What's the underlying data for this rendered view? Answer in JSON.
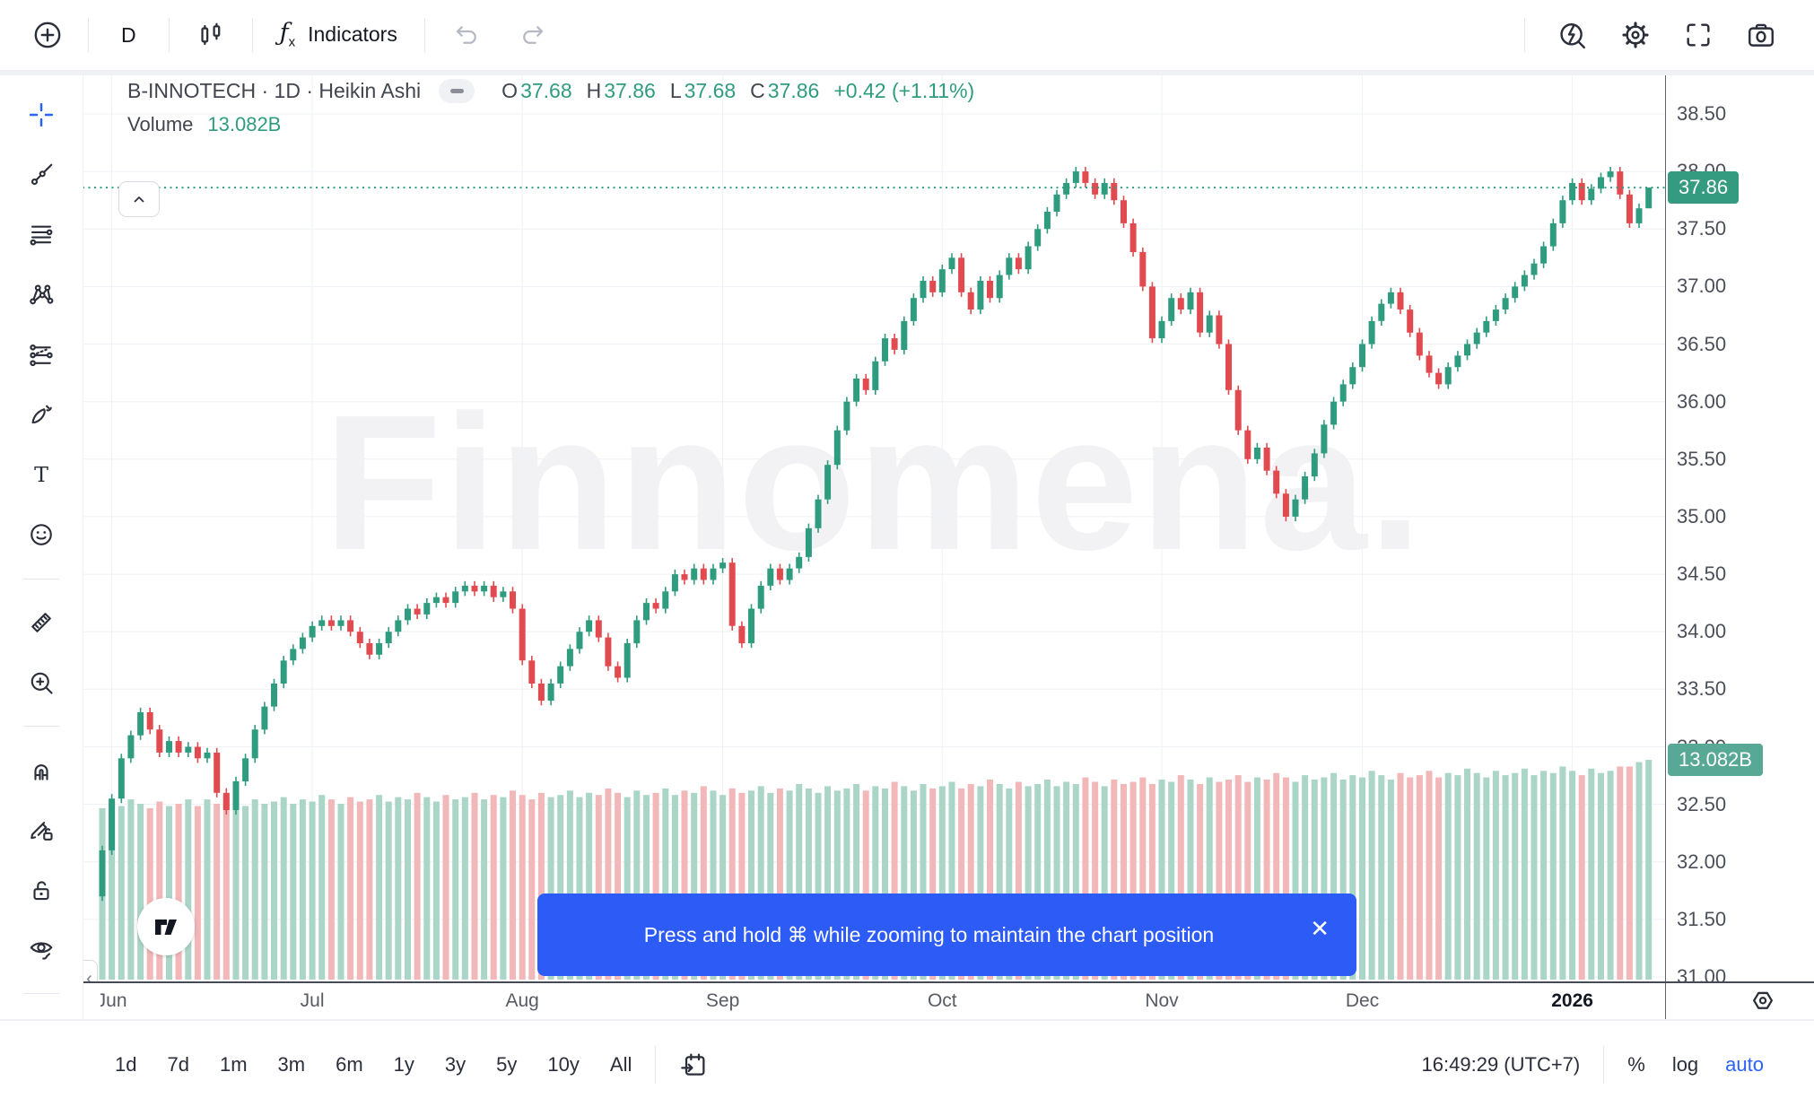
{
  "header": {
    "interval": "D",
    "indicators_label": "Indicators",
    "icons_left": [
      "add-symbol-icon",
      "interval-button",
      "candle-style-icon",
      "fx-icon",
      "undo-icon",
      "redo-icon"
    ],
    "icons_right": [
      "quick-search-icon",
      "settings-gear-icon",
      "fullscreen-icon",
      "screenshot-camera-icon"
    ]
  },
  "left_toolbar": {
    "tools": [
      "crosshair",
      "trend-line",
      "fib-retracement",
      "xabcd-pattern",
      "long-position",
      "brush",
      "text",
      "emoji",
      "ruler",
      "zoom-in",
      "magnet",
      "drawing-mode-lock",
      "lock-all",
      "hide-drawings"
    ]
  },
  "symbol": {
    "title": "B-INNOTECH · 1D · Heikin Ashi",
    "legend": {
      "o_label": "O",
      "o": "37.68",
      "h_label": "H",
      "h": "37.86",
      "l_label": "L",
      "l": "37.68",
      "c_label": "C",
      "c": "37.86",
      "change": "+0.42 (+1.11%)"
    }
  },
  "volume_row": {
    "label": "Volume",
    "value": "13.082B"
  },
  "watermark": {
    "text": "Finnomena."
  },
  "toast": {
    "text": "Press and hold ⌘ while zooming to maintain the chart position"
  },
  "axis": {
    "price_badge": "37.86",
    "volume_badge": "13.082B"
  },
  "footer": {
    "ranges": [
      "1d",
      "7d",
      "1m",
      "3m",
      "6m",
      "1y",
      "3y",
      "5y",
      "10y",
      "All"
    ],
    "goto_date_icon": "calendar-goto-icon",
    "clock": "16:49:29 (UTC+7)",
    "percent_label": "%",
    "log_label": "log",
    "auto_label": "auto"
  },
  "colors": {
    "up": "#2f9c80",
    "down": "#e14b50",
    "vol_up": "#abd5c7",
    "vol_down": "#f2b7b9",
    "badge_price": "#359b80",
    "badge_volume": "#57a995",
    "accent_blue": "#2962ff",
    "toast_blue": "#2c5bf6",
    "grid": "#eef1f6"
  },
  "chart_data": {
    "type": "candlestick+volume",
    "symbol": "B-INNOTECH",
    "interval": "1D",
    "style": "Heikin Ashi",
    "title": "B-INNOTECH · 1D · Heikin Ashi",
    "legend_position": "top-left",
    "grid": true,
    "ylim": [
      31.0,
      38.5
    ],
    "y_ticks": [
      "38.50",
      "38.00",
      "37.50",
      "37.00",
      "36.50",
      "36.00",
      "35.50",
      "35.00",
      "34.50",
      "34.00",
      "33.50",
      "33.00",
      "32.50",
      "32.00",
      "31.50",
      "31.00"
    ],
    "x_labels": [
      {
        "label": "Jun",
        "bar": 1,
        "bold": false
      },
      {
        "label": "Jul",
        "bar": 22,
        "bold": false
      },
      {
        "label": "Aug",
        "bar": 44,
        "bold": false
      },
      {
        "label": "Sep",
        "bar": 65,
        "bold": false
      },
      {
        "label": "Oct",
        "bar": 88,
        "bold": false
      },
      {
        "label": "Nov",
        "bar": 111,
        "bold": false
      },
      {
        "label": "Dec",
        "bar": 132,
        "bold": false
      },
      {
        "label": "2026",
        "bar": 154,
        "bold": true
      }
    ],
    "last_price": 37.86,
    "last_candle": {
      "open": 37.68,
      "high": 37.86,
      "low": 37.68,
      "close": 37.86,
      "change": "+0.42 (+1.11%)"
    },
    "current_volume_label": "13.082B",
    "open_first": 31.7,
    "closes": [
      32.1,
      32.55,
      32.9,
      33.1,
      33.3,
      33.15,
      32.95,
      33.05,
      32.95,
      33.0,
      32.9,
      32.95,
      32.6,
      32.45,
      32.7,
      32.9,
      33.15,
      33.35,
      33.55,
      33.75,
      33.85,
      33.95,
      34.05,
      34.1,
      34.05,
      34.1,
      34.0,
      33.9,
      33.8,
      33.9,
      34.0,
      34.1,
      34.2,
      34.15,
      34.25,
      34.3,
      34.25,
      34.35,
      34.4,
      34.35,
      34.4,
      34.3,
      34.35,
      34.2,
      33.75,
      33.55,
      33.4,
      33.55,
      33.7,
      33.85,
      34.0,
      34.1,
      33.95,
      33.7,
      33.6,
      33.9,
      34.1,
      34.25,
      34.2,
      34.35,
      34.5,
      34.45,
      34.55,
      34.45,
      34.55,
      34.6,
      34.05,
      33.9,
      34.2,
      34.4,
      34.55,
      34.45,
      34.55,
      34.65,
      34.9,
      35.15,
      35.45,
      35.75,
      36.0,
      36.2,
      36.1,
      36.35,
      36.55,
      36.45,
      36.7,
      36.9,
      37.05,
      36.95,
      37.15,
      37.25,
      36.95,
      36.8,
      37.05,
      36.9,
      37.1,
      37.25,
      37.15,
      37.35,
      37.5,
      37.65,
      37.8,
      37.9,
      38.0,
      37.9,
      37.8,
      37.9,
      37.75,
      37.55,
      37.3,
      37.0,
      36.55,
      36.7,
      36.9,
      36.8,
      36.95,
      36.6,
      36.75,
      36.5,
      36.1,
      35.75,
      35.5,
      35.6,
      35.4,
      35.2,
      35.0,
      35.15,
      35.35,
      35.55,
      35.8,
      36.0,
      36.15,
      36.3,
      36.5,
      36.7,
      36.85,
      36.95,
      36.8,
      36.6,
      36.4,
      36.25,
      36.15,
      36.3,
      36.4,
      36.5,
      36.6,
      36.7,
      36.8,
      36.9,
      37.0,
      37.1,
      37.2,
      37.35,
      37.55,
      37.75,
      37.9,
      37.75,
      37.85,
      37.95,
      38.0,
      37.8,
      37.55,
      37.68,
      37.86
    ],
    "volumes": [
      78,
      81,
      79,
      82,
      80,
      78,
      81,
      79,
      80,
      82,
      79,
      82,
      80,
      83,
      81,
      79,
      82,
      80,
      81,
      83,
      80,
      82,
      81,
      84,
      82,
      80,
      83,
      81,
      82,
      84,
      81,
      83,
      82,
      85,
      83,
      81,
      84,
      82,
      83,
      85,
      82,
      84,
      83,
      86,
      84,
      82,
      85,
      83,
      84,
      86,
      83,
      85,
      84,
      87,
      85,
      83,
      86,
      84,
      85,
      87,
      84,
      86,
      85,
      88,
      86,
      84,
      87,
      85,
      86,
      88,
      85,
      87,
      86,
      89,
      87,
      85,
      88,
      86,
      87,
      89,
      86,
      88,
      87,
      90,
      88,
      86,
      89,
      87,
      88,
      90,
      87,
      89,
      88,
      91,
      89,
      87,
      90,
      88,
      89,
      91,
      88,
      90,
      89,
      92,
      90,
      88,
      91,
      89,
      90,
      92,
      89,
      91,
      90,
      93,
      91,
      89,
      92,
      90,
      91,
      93,
      90,
      92,
      91,
      94,
      92,
      90,
      93,
      91,
      92,
      94,
      91,
      93,
      92,
      95,
      93,
      91,
      94,
      92,
      93,
      95,
      92,
      94,
      93,
      96,
      94,
      92,
      95,
      93,
      94,
      96,
      93,
      95,
      94,
      97,
      95,
      93,
      96,
      94,
      95,
      97,
      97,
      99,
      100
    ]
  }
}
